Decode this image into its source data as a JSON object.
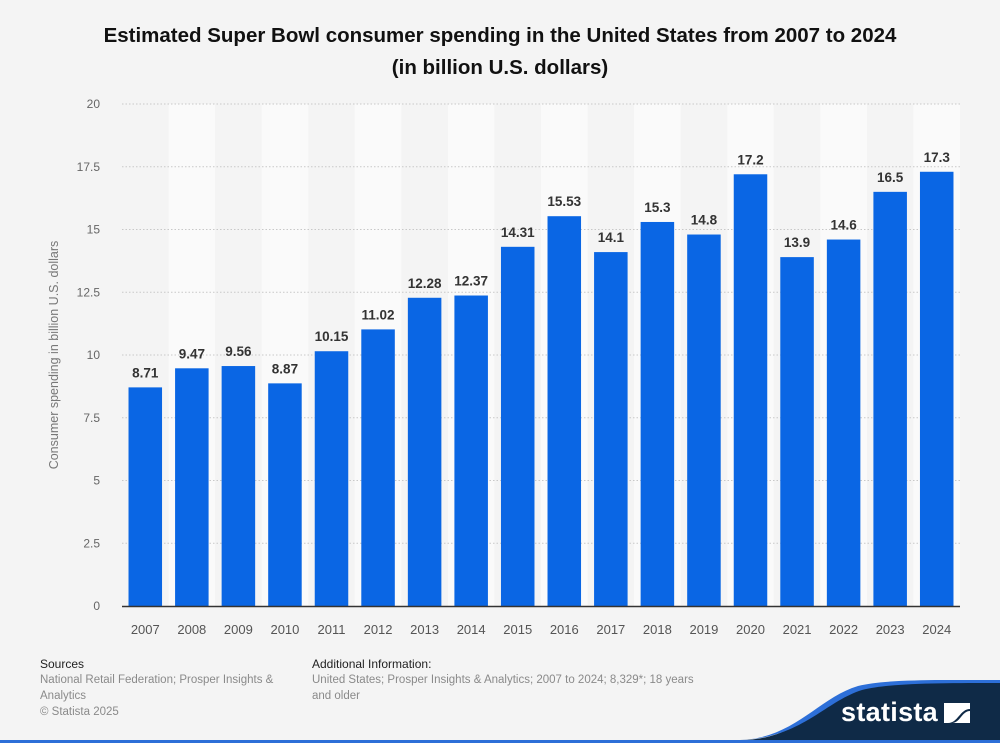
{
  "header": {
    "title_line1": "Estimated Super Bowl consumer spending in the United States from 2007 to 2024",
    "title_line2": "(in billion U.S. dollars)"
  },
  "chart_data": {
    "type": "bar",
    "title": "Estimated Super Bowl consumer spending in the United States from 2007 to 2024 (in billion U.S. dollars)",
    "xlabel": "",
    "ylabel": "Consumer spending in billion U.S. dollars",
    "ylim": [
      0,
      20
    ],
    "yticks": [
      "0",
      "2.5",
      "5",
      "7.5",
      "10",
      "12.5",
      "15",
      "17.5",
      "20"
    ],
    "grid": true,
    "categories": [
      "2007",
      "2008",
      "2009",
      "2010",
      "2011",
      "2012",
      "2013",
      "2014",
      "2015",
      "2016",
      "2017",
      "2018",
      "2019",
      "2020",
      "2021",
      "2022",
      "2023",
      "2024"
    ],
    "values": [
      8.71,
      9.47,
      9.56,
      8.87,
      10.15,
      11.02,
      12.28,
      12.37,
      14.31,
      15.53,
      14.1,
      15.3,
      14.8,
      17.2,
      13.9,
      14.6,
      16.5,
      17.3
    ],
    "labels": [
      "8.71",
      "9.47",
      "9.56",
      "8.87",
      "10.15",
      "11.02",
      "12.28",
      "12.37",
      "14.31",
      "15.53",
      "14.1",
      "15.3",
      "14.8",
      "17.2",
      "13.9",
      "14.6",
      "16.5",
      "17.3"
    ],
    "bar_color": "#0a66e4"
  },
  "footer": {
    "sources_heading": "Sources",
    "sources_line1": "National Retail Federation; Prosper Insights &",
    "sources_line2": "Analytics",
    "copyright": "© Statista 2025",
    "info_heading": "Additional Information:",
    "info_line1": "United States; Prosper Insights & Analytics; 2007 to 2024; 8,329*; 18 years",
    "info_line2": "and older"
  },
  "brand": {
    "name": "statista",
    "color": "#0f2a47"
  }
}
